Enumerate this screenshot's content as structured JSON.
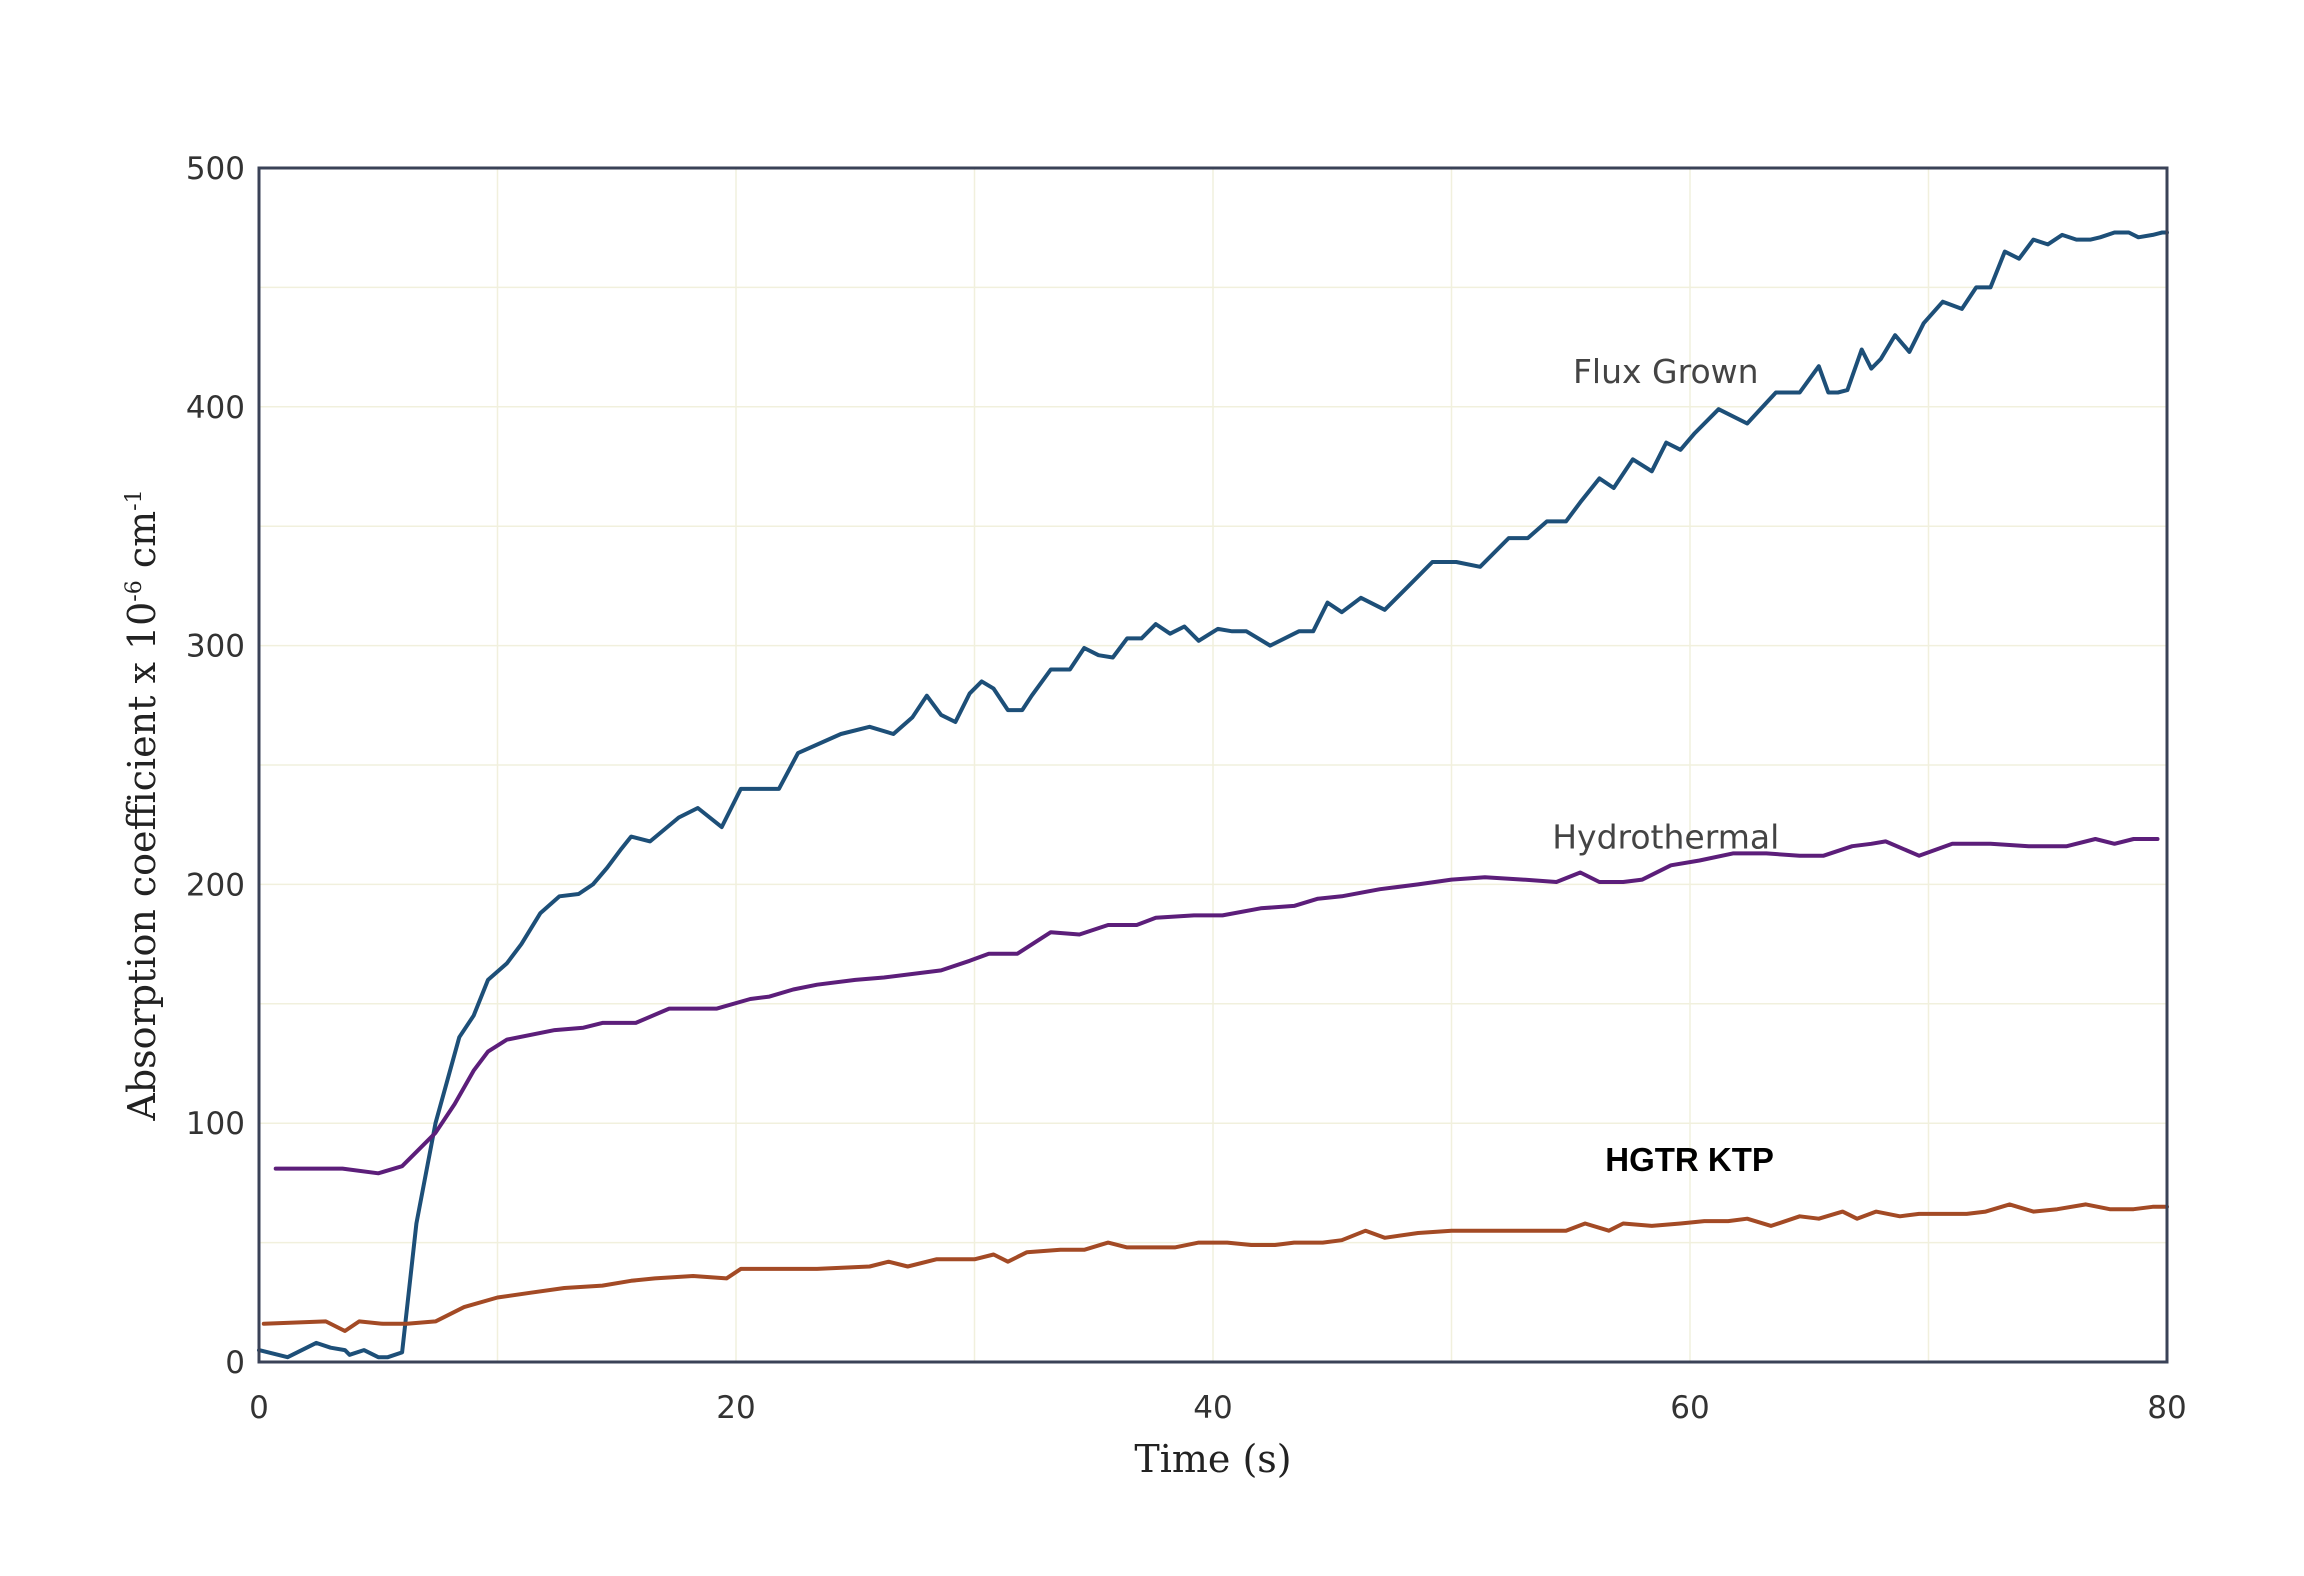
{
  "chart_data": {
    "type": "line",
    "title": "",
    "xlabel": "Time (s)",
    "ylabel": "Absorption coefficient x 10",
    "ylabel_exp1": "-6",
    "ylabel_mid": " cm",
    "ylabel_exp2": "-1",
    "xlim": [
      0,
      80
    ],
    "ylim": [
      0,
      500
    ],
    "x_ticks": [
      0,
      20,
      40,
      60,
      80
    ],
    "y_ticks": [
      0,
      100,
      200,
      300,
      400,
      500
    ],
    "grid": true,
    "legend": "none",
    "series": [
      {
        "name": "Flux Grown",
        "color": "#1d4f78",
        "label_at": [
          55,
          410
        ],
        "x": [
          0,
          1.2,
          2.4,
          3,
          3.6,
          3.8,
          4.4,
          5,
          5.4,
          6,
          6.6,
          7.4,
          8.4,
          9,
          9.6,
          10.4,
          11,
          11.8,
          12.6,
          13.4,
          14,
          14.6,
          15.2,
          15.6,
          16.4,
          17.6,
          18.4,
          19.4,
          20.2,
          20.8,
          21.8,
          22.6,
          24.4,
          25.6,
          26.6,
          27.4,
          28,
          28.6,
          29.2,
          29.8,
          30.3,
          30.8,
          31.4,
          32,
          32.4,
          33.2,
          34,
          34.6,
          35.2,
          35.8,
          36.4,
          37,
          37.6,
          38.2,
          38.8,
          39.4,
          40.2,
          40.8,
          41.4,
          42.4,
          43.6,
          44.2,
          44.8,
          45.4,
          46.2,
          47.2,
          48.2,
          49.2,
          50.2,
          51.2,
          52.4,
          53.2,
          54,
          54.8,
          55.4,
          56.2,
          56.8,
          57.6,
          58.4,
          59,
          59.6,
          60.2,
          61.2,
          62.4,
          63.6,
          64.6,
          65.4,
          65.8,
          66.2,
          66.6,
          67.2,
          67.6,
          68,
          68.6,
          69.2,
          69.8,
          70.6,
          71.4,
          72,
          72.6,
          73.2,
          73.8,
          74.4,
          75,
          75.6,
          76.2,
          76.8,
          77.2,
          77.8,
          78.4,
          78.8,
          79.4,
          79.8,
          80
        ],
        "y": [
          5,
          2,
          8,
          6,
          5,
          3,
          5,
          2,
          2,
          4,
          58,
          100,
          136,
          145,
          160,
          167,
          175,
          188,
          195,
          196,
          200,
          207,
          215,
          220,
          218,
          228,
          232,
          224,
          240,
          240,
          240,
          255,
          263,
          266,
          263,
          270,
          279,
          271,
          268,
          280,
          285,
          282,
          273,
          273,
          279,
          290,
          290,
          299,
          296,
          295,
          303,
          303,
          309,
          305,
          308,
          302,
          307,
          306,
          306,
          300,
          306,
          306,
          318,
          314,
          320,
          315,
          325,
          335,
          335,
          333,
          345,
          345,
          352,
          352,
          360,
          370,
          366,
          378,
          373,
          385,
          382,
          389,
          399,
          393,
          406,
          406,
          417,
          406,
          406,
          407,
          424,
          416,
          420,
          430,
          423,
          435,
          444,
          441,
          450,
          450,
          465,
          462,
          470,
          468,
          472,
          470,
          470,
          471,
          473,
          473,
          471,
          472,
          473,
          473
        ],
        "x_smooth_note": ""
      },
      {
        "name": "Hydrothermal",
        "color": "#5c1e7a",
        "label_at": [
          55,
          215
        ],
        "x": [
          0.7,
          3.5,
          5,
          6,
          6.6,
          7.4,
          8.2,
          9,
          9.6,
          10.4,
          12.4,
          13.6,
          14.4,
          15.8,
          17.2,
          19.2,
          20.6,
          21.4,
          22.4,
          23.4,
          25,
          26.2,
          28.6,
          29.8,
          30.6,
          31.8,
          33.2,
          34.4,
          35.6,
          36.8,
          37.6,
          39.2,
          40.4,
          42,
          43.4,
          44.4,
          45.4,
          47,
          48.6,
          50,
          51.4,
          53,
          54.4,
          55.4,
          56.2,
          57.2,
          58,
          59.2,
          60.4,
          61.8,
          63.2,
          64.6,
          65.6,
          66.8,
          67.6,
          68.2,
          69.6,
          71,
          72.6,
          74.2,
          75.8,
          77,
          77.8,
          78.6,
          79.6
        ],
        "y": [
          81,
          81,
          79,
          82,
          88,
          96,
          108,
          122,
          130,
          135,
          139,
          140,
          142,
          142,
          148,
          148,
          152,
          153,
          156,
          158,
          160,
          161,
          164,
          168,
          171,
          171,
          180,
          179,
          183,
          183,
          186,
          187,
          187,
          190,
          191,
          194,
          195,
          198,
          200,
          202,
          203,
          202,
          201,
          205,
          201,
          201,
          202,
          208,
          210,
          213,
          213,
          212,
          212,
          216,
          217,
          218,
          212,
          217,
          217,
          216,
          216,
          219,
          217,
          219,
          219
        ],
        "x_smooth_note": ""
      },
      {
        "name": "HGTR KTP",
        "color": "#a34a25",
        "label_at": [
          56,
          80
        ],
        "x": [
          0.2,
          2.8,
          3.6,
          4.2,
          5.2,
          6.2,
          7.4,
          8.6,
          10,
          11.4,
          12.8,
          14.4,
          15.6,
          16.6,
          18.2,
          19.6,
          20.2,
          21.6,
          23.4,
          25.6,
          26.4,
          27.2,
          28.4,
          30,
          30.8,
          31.4,
          32.2,
          33.6,
          34.6,
          35.6,
          36.4,
          37.4,
          38.4,
          39.4,
          40.6,
          41.6,
          42.6,
          43.4,
          44.6,
          45.4,
          46.4,
          47.2,
          48.6,
          50,
          51.4,
          52.4,
          53.6,
          54.8,
          55.6,
          56.6,
          57.2,
          58.4,
          59.6,
          60.6,
          61.6,
          62.4,
          63.4,
          64.6,
          65.4,
          66.4,
          67,
          67.8,
          68.8,
          69.6,
          70.6,
          71.6,
          72.4,
          73.4,
          74.4,
          75.4,
          76.6,
          77.6,
          78.6,
          79.4,
          80
        ],
        "y": [
          16,
          17,
          13,
          17,
          16,
          16,
          17,
          23,
          27,
          29,
          31,
          32,
          34,
          35,
          36,
          35,
          39,
          39,
          39,
          40,
          42,
          40,
          43,
          43,
          45,
          42,
          46,
          47,
          47,
          50,
          48,
          48,
          48,
          50,
          50,
          49,
          49,
          50,
          50,
          51,
          55,
          52,
          54,
          55,
          55,
          55,
          55,
          55,
          58,
          55,
          58,
          57,
          58,
          59,
          59,
          60,
          57,
          61,
          60,
          63,
          60,
          63,
          61,
          62,
          62,
          62,
          63,
          66,
          63,
          64,
          66,
          64,
          64,
          65,
          65
        ],
        "x_smooth_note": ""
      }
    ]
  }
}
